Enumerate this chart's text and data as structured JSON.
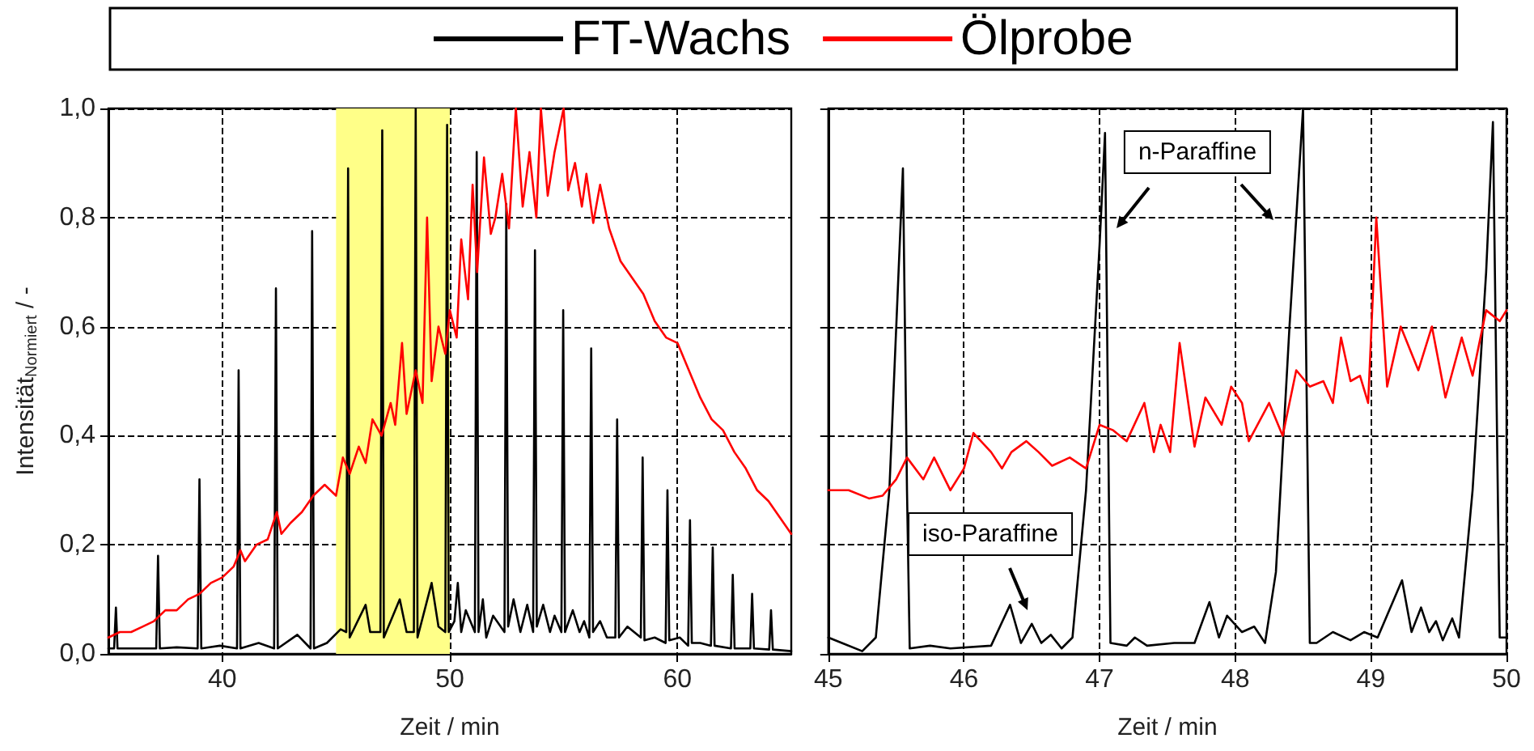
{
  "chart_data": [
    {
      "type": "line",
      "xlabel": "Zeit / min",
      "ylabel": "Intensität$_{Normiert}$ / -",
      "xlim": [
        35,
        65
      ],
      "xticks": [
        40,
        50,
        60
      ],
      "ylim": [
        0,
        1
      ],
      "yticks": [
        {
          "value": 0,
          "label": "0,0"
        },
        {
          "value": 0.2,
          "label": "0,2"
        },
        {
          "value": 0.4,
          "label": "0,4"
        },
        {
          "value": 0.6,
          "label": "0,6"
        },
        {
          "value": 0.8,
          "label": "0,8"
        },
        {
          "value": 1,
          "label": "1,0"
        }
      ],
      "grid": true,
      "legend": "top",
      "line_style": "solid",
      "marker": "none",
      "bands": [
        {
          "axis": "x",
          "from": 45,
          "to": 50,
          "color": "#ffff88"
        }
      ],
      "series": [
        {
          "name": "FT-Wachs",
          "color": "#000000",
          "x": [
            35,
            35.25,
            35.33,
            35.4,
            36,
            37.1,
            37.18,
            37.26,
            38,
            38.92,
            39,
            39.08,
            39.9,
            40.65,
            40.72,
            40.8,
            41.6,
            42.28,
            42.36,
            42.44,
            43.3,
            43.88,
            43.95,
            44.03,
            44.6,
            45.2,
            45.45,
            45.53,
            45.6,
            46.3,
            46.5,
            46.95,
            47.03,
            47.1,
            47.8,
            48.1,
            48.42,
            48.5,
            48.58,
            49.2,
            49.5,
            49.8,
            49.88,
            49.95,
            50.2,
            50.35,
            50.5,
            50.7,
            51.1,
            51.18,
            51.26,
            51.45,
            51.6,
            51.9,
            52.4,
            52.48,
            52.56,
            52.8,
            53.1,
            53.4,
            53.66,
            53.74,
            53.82,
            54.1,
            54.4,
            54.6,
            54.9,
            54.98,
            55.06,
            55.4,
            55.7,
            55.9,
            56.13,
            56.21,
            56.29,
            56.6,
            56.9,
            57.27,
            57.35,
            57.43,
            57.8,
            58.39,
            58.47,
            58.55,
            59,
            59.48,
            59.56,
            59.64,
            60.1,
            60.47,
            60.55,
            60.63,
            61,
            61.47,
            61.55,
            61.63,
            62.35,
            62.43,
            62.51,
            63.2,
            63.28,
            63.36,
            64.03,
            64.11,
            64.19,
            65
          ],
          "values": [
            0.01,
            0.01,
            0.085,
            0.01,
            0.01,
            0.01,
            0.18,
            0.01,
            0.012,
            0.01,
            0.32,
            0.01,
            0.015,
            0.01,
            0.52,
            0.01,
            0.02,
            0.01,
            0.67,
            0.01,
            0.035,
            0.01,
            0.775,
            0.01,
            0.02,
            0.045,
            0.04,
            0.89,
            0.03,
            0.09,
            0.04,
            0.04,
            0.96,
            0.03,
            0.1,
            0.04,
            0.04,
            1.0,
            0.03,
            0.13,
            0.05,
            0.04,
            0.97,
            0.04,
            0.06,
            0.13,
            0.04,
            0.08,
            0.04,
            0.92,
            0.04,
            0.1,
            0.03,
            0.07,
            0.04,
            0.825,
            0.05,
            0.1,
            0.04,
            0.09,
            0.04,
            0.74,
            0.05,
            0.09,
            0.04,
            0.07,
            0.04,
            0.63,
            0.04,
            0.08,
            0.04,
            0.06,
            0.03,
            0.56,
            0.04,
            0.06,
            0.03,
            0.03,
            0.43,
            0.03,
            0.05,
            0.03,
            0.36,
            0.025,
            0.03,
            0.02,
            0.3,
            0.025,
            0.03,
            0.015,
            0.245,
            0.02,
            0.02,
            0.015,
            0.195,
            0.015,
            0.01,
            0.145,
            0.01,
            0.01,
            0.11,
            0.01,
            0.008,
            0.08,
            0.008,
            0.005
          ]
        },
        {
          "name": "Ölprobe",
          "color": "#ff0000",
          "x": [
            35,
            35.5,
            36,
            36.5,
            37,
            37.5,
            38,
            38.5,
            39,
            39.5,
            40,
            40.5,
            40.8,
            41,
            41.5,
            42,
            42.4,
            42.6,
            43,
            43.5,
            44,
            44.5,
            45,
            45.3,
            45.6,
            46,
            46.3,
            46.6,
            47,
            47.4,
            47.6,
            47.9,
            48.1,
            48.5,
            48.8,
            49,
            49.2,
            49.5,
            49.8,
            50,
            50.3,
            50.5,
            50.8,
            51,
            51.2,
            51.5,
            51.8,
            52,
            52.3,
            52.6,
            52.9,
            53.2,
            53.5,
            53.8,
            54,
            54.3,
            54.6,
            55,
            55.2,
            55.5,
            55.8,
            56,
            56.3,
            56.6,
            57,
            57.5,
            58,
            58.5,
            59,
            59.5,
            60,
            60.5,
            61,
            61.5,
            62,
            62.5,
            63,
            63.5,
            64,
            64.5,
            65
          ],
          "values": [
            0.03,
            0.04,
            0.04,
            0.05,
            0.06,
            0.08,
            0.08,
            0.1,
            0.11,
            0.13,
            0.14,
            0.16,
            0.19,
            0.17,
            0.2,
            0.21,
            0.26,
            0.22,
            0.24,
            0.26,
            0.29,
            0.31,
            0.29,
            0.36,
            0.33,
            0.38,
            0.35,
            0.43,
            0.4,
            0.46,
            0.42,
            0.57,
            0.44,
            0.52,
            0.46,
            0.8,
            0.5,
            0.6,
            0.55,
            0.63,
            0.58,
            0.76,
            0.65,
            0.86,
            0.7,
            0.91,
            0.77,
            0.8,
            0.88,
            0.78,
            1.0,
            0.82,
            0.92,
            0.8,
            1.0,
            0.84,
            0.92,
            1.0,
            0.85,
            0.9,
            0.82,
            0.88,
            0.79,
            0.86,
            0.78,
            0.72,
            0.69,
            0.66,
            0.61,
            0.58,
            0.57,
            0.52,
            0.47,
            0.43,
            0.41,
            0.37,
            0.34,
            0.3,
            0.28,
            0.25,
            0.22
          ]
        }
      ]
    },
    {
      "type": "line",
      "xlabel": "Zeit / min",
      "xlim": [
        45,
        50
      ],
      "xticks": [
        45,
        46,
        47,
        48,
        49,
        50
      ],
      "ylim": [
        0,
        1
      ],
      "yticks": [
        0,
        0.2,
        0.4,
        0.6,
        0.8,
        1
      ],
      "tick_labels": "x",
      "grid": true,
      "line_style": "solid",
      "marker": "none",
      "annotations": [
        "n-Paraffine",
        "iso-Paraffine"
      ],
      "series": [
        {
          "color": "#000000",
          "x": [
            45,
            45.1,
            45.25,
            45.35,
            45.45,
            45.55,
            45.58,
            45.6,
            45.75,
            45.9,
            46.2,
            46.34,
            46.42,
            46.5,
            46.57,
            46.64,
            46.72,
            46.8,
            46.9,
            47,
            47.04,
            47.08,
            47.2,
            47.26,
            47.35,
            47.55,
            47.7,
            47.81,
            47.88,
            47.94,
            48.05,
            48.14,
            48.22,
            48.3,
            48.4,
            48.5,
            48.55,
            48.6,
            48.72,
            48.85,
            48.95,
            49.05,
            49.23,
            49.3,
            49.37,
            49.43,
            49.48,
            49.53,
            49.6,
            49.65,
            49.75,
            49.85,
            49.9,
            49.95,
            50
          ],
          "values": [
            0.03,
            0.02,
            0.005,
            0.03,
            0.3,
            0.89,
            0.3,
            0.01,
            0.015,
            0.01,
            0.015,
            0.09,
            0.02,
            0.055,
            0.02,
            0.035,
            0.01,
            0.03,
            0.3,
            0.75,
            0.955,
            0.02,
            0.015,
            0.03,
            0.015,
            0.02,
            0.02,
            0.095,
            0.03,
            0.07,
            0.04,
            0.05,
            0.02,
            0.15,
            0.6,
            1.0,
            0.02,
            0.02,
            0.04,
            0.025,
            0.04,
            0.03,
            0.135,
            0.04,
            0.085,
            0.04,
            0.06,
            0.025,
            0.065,
            0.03,
            0.3,
            0.7,
            0.975,
            0.03,
            0.03
          ]
        },
        {
          "color": "#ff0000",
          "x": [
            45,
            45.15,
            45.3,
            45.4,
            45.5,
            45.58,
            45.7,
            45.78,
            45.9,
            46,
            46.07,
            46.2,
            46.28,
            46.35,
            46.46,
            46.55,
            46.65,
            46.78,
            46.9,
            47,
            47.1,
            47.2,
            47.33,
            47.4,
            47.45,
            47.52,
            47.59,
            47.7,
            47.78,
            47.9,
            47.97,
            48.05,
            48.1,
            48.25,
            48.35,
            48.45,
            48.55,
            48.65,
            48.72,
            48.78,
            48.85,
            48.92,
            48.98,
            49.04,
            49.12,
            49.22,
            49.35,
            49.45,
            49.55,
            49.67,
            49.75,
            49.85,
            49.95,
            50
          ],
          "values": [
            0.3,
            0.3,
            0.285,
            0.29,
            0.32,
            0.36,
            0.32,
            0.36,
            0.3,
            0.34,
            0.405,
            0.37,
            0.34,
            0.37,
            0.39,
            0.37,
            0.345,
            0.36,
            0.34,
            0.42,
            0.41,
            0.39,
            0.46,
            0.37,
            0.42,
            0.37,
            0.57,
            0.38,
            0.47,
            0.42,
            0.49,
            0.46,
            0.39,
            0.46,
            0.4,
            0.52,
            0.49,
            0.5,
            0.46,
            0.58,
            0.5,
            0.51,
            0.46,
            0.8,
            0.49,
            0.6,
            0.52,
            0.6,
            0.47,
            0.58,
            0.51,
            0.63,
            0.61,
            0.63
          ]
        }
      ]
    }
  ]
}
